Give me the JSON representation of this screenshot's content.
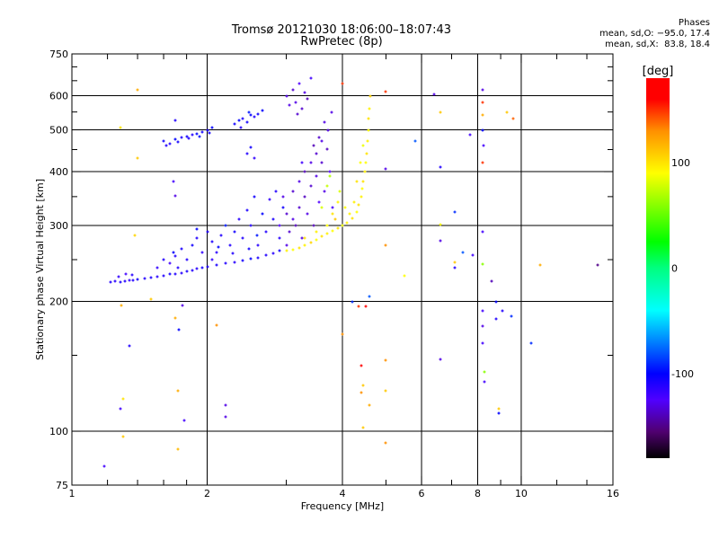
{
  "chart_data": {
    "type": "scatter",
    "title": "Tromsø 20121030 18:06:00–18:07:43",
    "subtitle": "RwPretec (8p)",
    "stats": {
      "heading": "Phases",
      "o_line": "mean, sd,O: −95.0, 17.4",
      "x_line": "mean, sd,X:  83.8, 18.4"
    },
    "xlabel": "Frequency [MHz]",
    "ylabel": "Stationary phase Virtual Height [km]",
    "xscale": "log",
    "yscale": "log",
    "xlim": [
      1,
      16
    ],
    "ylim": [
      75,
      750
    ],
    "xticks": [
      1,
      2,
      4,
      6,
      8,
      10,
      16
    ],
    "yticks": [
      75,
      100,
      200,
      300,
      400,
      500,
      600,
      750
    ],
    "xminor": [
      1.2,
      1.4,
      1.6,
      1.8,
      3,
      5,
      7,
      9,
      12,
      14
    ],
    "yminor": [
      150,
      250,
      350,
      450,
      550,
      650,
      700
    ],
    "xgrid": [
      2,
      4,
      6,
      8,
      10
    ],
    "ygrid": [
      100,
      200,
      300,
      400,
      500,
      600
    ],
    "grid": true,
    "colorbar": {
      "label": "[deg]",
      "range": [
        -180,
        180
      ],
      "ticks": [
        100,
        0,
        -100
      ],
      "stops": [
        [
          -180,
          "#000000"
        ],
        [
          -155,
          "#500070"
        ],
        [
          -125,
          "#5000ff"
        ],
        [
          -100,
          "#0000ff"
        ],
        [
          -70,
          "#0080ff"
        ],
        [
          -40,
          "#00ffff"
        ],
        [
          0,
          "#00ff80"
        ],
        [
          25,
          "#00ff00"
        ],
        [
          90,
          "#ffff00"
        ],
        [
          130,
          "#ff9000"
        ],
        [
          160,
          "#ff0000"
        ],
        [
          180,
          "#ff0000"
        ]
      ]
    },
    "point_fields": [
      "frequency_mhz",
      "height_km",
      "phase_deg"
    ],
    "points": [
      [
        1.22,
        222,
        -110
      ],
      [
        1.25,
        223,
        -112
      ],
      [
        1.28,
        222,
        -108
      ],
      [
        1.31,
        223,
        -110
      ],
      [
        1.34,
        224,
        -115
      ],
      [
        1.37,
        224,
        -110
      ],
      [
        1.4,
        225,
        -105
      ],
      [
        1.27,
        228,
        -115
      ],
      [
        1.32,
        232,
        -120
      ],
      [
        1.36,
        230,
        -112
      ],
      [
        1.45,
        226,
        -110
      ],
      [
        1.5,
        227,
        -108
      ],
      [
        1.55,
        228,
        -112
      ],
      [
        1.6,
        229,
        -110
      ],
      [
        1.65,
        231,
        -105
      ],
      [
        1.7,
        232,
        -110
      ],
      [
        1.75,
        233,
        -112
      ],
      [
        1.8,
        235,
        -108
      ],
      [
        1.85,
        236,
        -110
      ],
      [
        1.9,
        238,
        -112
      ],
      [
        1.95,
        240,
        -105
      ],
      [
        2.0,
        241,
        -110
      ],
      [
        2.1,
        243,
        -108
      ],
      [
        2.2,
        245,
        -110
      ],
      [
        2.3,
        247,
        -112
      ],
      [
        2.4,
        249,
        -105
      ],
      [
        2.5,
        251,
        -100
      ],
      [
        2.6,
        253,
        -108
      ],
      [
        2.7,
        256,
        -110
      ],
      [
        2.8,
        259,
        -112
      ],
      [
        2.9,
        262,
        -105
      ],
      [
        1.55,
        240,
        -115
      ],
      [
        1.6,
        250,
        -110
      ],
      [
        1.65,
        245,
        -120
      ],
      [
        1.7,
        255,
        -112
      ],
      [
        1.75,
        265,
        -108
      ],
      [
        1.8,
        250,
        -110
      ],
      [
        1.85,
        270,
        -105
      ],
      [
        1.9,
        280,
        -110
      ],
      [
        1.95,
        260,
        -115
      ],
      [
        2.0,
        290,
        -110
      ],
      [
        2.05,
        275,
        -108
      ],
      [
        1.9,
        295,
        -100
      ],
      [
        2.1,
        260,
        -112
      ],
      [
        2.15,
        285,
        -110
      ],
      [
        2.2,
        300,
        -95
      ],
      [
        2.25,
        270,
        -110
      ],
      [
        2.3,
        290,
        -105
      ],
      [
        2.35,
        310,
        -112
      ],
      [
        2.4,
        280,
        -110
      ],
      [
        2.45,
        325,
        -108
      ],
      [
        2.5,
        300,
        -110
      ],
      [
        2.55,
        350,
        -105
      ],
      [
        2.6,
        270,
        -112
      ],
      [
        2.65,
        320,
        -100
      ],
      [
        2.7,
        290,
        -110
      ],
      [
        2.75,
        345,
        -115
      ],
      [
        2.8,
        310,
        -108
      ],
      [
        2.85,
        360,
        -110
      ],
      [
        2.9,
        280,
        -112
      ],
      [
        2.95,
        330,
        -105
      ],
      [
        1.72,
        240,
        -110
      ],
      [
        1.68,
        260,
        -100
      ],
      [
        2.05,
        250,
        -115
      ],
      [
        2.12,
        268,
        -100
      ],
      [
        2.28,
        258,
        -110
      ],
      [
        2.48,
        265,
        -105
      ],
      [
        2.58,
        285,
        -95
      ],
      [
        3.0,
        270,
        -130
      ],
      [
        3.05,
        290,
        -135
      ],
      [
        3.1,
        310,
        -130
      ],
      [
        3.15,
        300,
        -140
      ],
      [
        3.2,
        330,
        -135
      ],
      [
        3.25,
        280,
        -130
      ],
      [
        3.3,
        350,
        -138
      ],
      [
        3.35,
        320,
        -130
      ],
      [
        3.4,
        370,
        -135
      ],
      [
        3.45,
        300,
        -140
      ],
      [
        3.5,
        390,
        -130
      ],
      [
        3.55,
        340,
        -125
      ],
      [
        3.6,
        420,
        -135
      ],
      [
        3.65,
        360,
        -130
      ],
      [
        3.7,
        450,
        -138
      ],
      [
        3.72,
        500,
        -130
      ],
      [
        3.75,
        400,
        -125
      ],
      [
        3.78,
        550,
        -130
      ],
      [
        3.8,
        330,
        -120
      ],
      [
        3.1,
        360,
        -135
      ],
      [
        3.2,
        380,
        -130
      ],
      [
        3.3,
        400,
        -140
      ],
      [
        3.4,
        420,
        -130
      ],
      [
        3.5,
        440,
        -135
      ],
      [
        3.6,
        470,
        -130
      ],
      [
        3.25,
        420,
        -120
      ],
      [
        2.9,
        300,
        -125
      ],
      [
        2.95,
        350,
        -130
      ],
      [
        3.0,
        320,
        -135
      ],
      [
        3.55,
        480,
        -135
      ],
      [
        3.65,
        520,
        -130
      ],
      [
        3.45,
        460,
        -140
      ],
      [
        1.6,
        470,
        -105
      ],
      [
        1.65,
        465,
        -110
      ],
      [
        1.7,
        475,
        -100
      ],
      [
        1.75,
        480,
        -108
      ],
      [
        1.8,
        483,
        -105
      ],
      [
        1.85,
        486,
        -110
      ],
      [
        1.9,
        490,
        -100
      ],
      [
        1.95,
        495,
        -105
      ],
      [
        2.0,
        500,
        -108
      ],
      [
        2.05,
        505,
        -100
      ],
      [
        1.62,
        460,
        -110
      ],
      [
        1.72,
        468,
        -105
      ],
      [
        1.82,
        478,
        -110
      ],
      [
        1.92,
        482,
        -98
      ],
      [
        2.02,
        492,
        -105
      ],
      [
        2.3,
        515,
        -105
      ],
      [
        2.35,
        525,
        -100
      ],
      [
        2.4,
        530,
        -108
      ],
      [
        2.45,
        520,
        -105
      ],
      [
        2.5,
        540,
        -100
      ],
      [
        2.55,
        535,
        -110
      ],
      [
        2.6,
        545,
        -105
      ],
      [
        2.65,
        555,
        -100
      ],
      [
        2.38,
        505,
        -110
      ],
      [
        2.48,
        550,
        -95
      ],
      [
        2.45,
        440,
        -110
      ],
      [
        2.5,
        455,
        -105
      ],
      [
        2.55,
        430,
        -115
      ],
      [
        3.0,
        600,
        -130
      ],
      [
        3.1,
        620,
        -135
      ],
      [
        3.15,
        580,
        -130
      ],
      [
        3.2,
        640,
        -125
      ],
      [
        3.25,
        560,
        -135
      ],
      [
        3.3,
        610,
        -130
      ],
      [
        3.35,
        590,
        -140
      ],
      [
        3.05,
        570,
        -130
      ],
      [
        3.4,
        660,
        -120
      ],
      [
        3.18,
        545,
        -135
      ],
      [
        3.0,
        262,
        95
      ],
      [
        3.1,
        264,
        90
      ],
      [
        3.2,
        266,
        100
      ],
      [
        3.3,
        270,
        95
      ],
      [
        3.4,
        274,
        105
      ],
      [
        3.5,
        278,
        90
      ],
      [
        3.6,
        283,
        100
      ],
      [
        3.7,
        288,
        95
      ],
      [
        3.8,
        292,
        90
      ],
      [
        3.9,
        296,
        100
      ],
      [
        4.0,
        300,
        85
      ],
      [
        4.1,
        305,
        95
      ],
      [
        4.2,
        312,
        100
      ],
      [
        4.3,
        322,
        90
      ],
      [
        4.35,
        335,
        100
      ],
      [
        4.4,
        350,
        95
      ],
      [
        4.42,
        365,
        90
      ],
      [
        4.45,
        380,
        100
      ],
      [
        4.48,
        400,
        95
      ],
      [
        4.5,
        420,
        90
      ],
      [
        4.52,
        440,
        100
      ],
      [
        4.55,
        470,
        95
      ],
      [
        4.57,
        500,
        90
      ],
      [
        4.58,
        530,
        100
      ],
      [
        4.6,
        560,
        95
      ],
      [
        4.62,
        600,
        105
      ],
      [
        3.3,
        280,
        100
      ],
      [
        3.5,
        290,
        95
      ],
      [
        3.7,
        300,
        90
      ],
      [
        3.8,
        320,
        100
      ],
      [
        3.9,
        340,
        95
      ],
      [
        3.95,
        360,
        80
      ],
      [
        4.05,
        330,
        90
      ],
      [
        4.25,
        340,
        95
      ],
      [
        4.3,
        380,
        100
      ],
      [
        4.38,
        420,
        90
      ],
      [
        4.45,
        460,
        85
      ],
      [
        3.85,
        310,
        110
      ],
      [
        4.15,
        320,
        95
      ],
      [
        3.6,
        330,
        80
      ],
      [
        3.7,
        370,
        75
      ],
      [
        3.75,
        390,
        70
      ],
      [
        1.3,
        97,
        110
      ],
      [
        1.3,
        119,
        100
      ],
      [
        1.28,
        113,
        -120
      ],
      [
        1.34,
        158,
        -110
      ],
      [
        1.29,
        196,
        120
      ],
      [
        1.28,
        505,
        100
      ],
      [
        1.4,
        620,
        120
      ],
      [
        1.4,
        430,
        110
      ],
      [
        1.38,
        285,
        105
      ],
      [
        1.5,
        202,
        110
      ],
      [
        1.18,
        83,
        -120
      ],
      [
        1.7,
        527,
        -110
      ],
      [
        1.68,
        380,
        -120
      ],
      [
        1.7,
        352,
        -130
      ],
      [
        1.7,
        183,
        120
      ],
      [
        1.73,
        172,
        -100
      ],
      [
        1.72,
        124,
        120
      ],
      [
        1.72,
        91,
        115
      ],
      [
        1.76,
        196,
        -130
      ],
      [
        1.78,
        106,
        -120
      ],
      [
        2.2,
        115,
        -130
      ],
      [
        2.2,
        108,
        -130
      ],
      [
        2.1,
        176,
        130
      ],
      [
        4.0,
        640,
        150
      ],
      [
        4.0,
        168,
        130
      ],
      [
        4.2,
        200,
        -90
      ],
      [
        4.35,
        195,
        150
      ],
      [
        4.4,
        142,
        160
      ],
      [
        4.4,
        123,
        130
      ],
      [
        4.45,
        128,
        110
      ],
      [
        4.5,
        195,
        160
      ],
      [
        4.6,
        115,
        120
      ],
      [
        4.45,
        102,
        110
      ],
      [
        5.0,
        612,
        150
      ],
      [
        5.0,
        406,
        -130
      ],
      [
        5.0,
        124,
        110
      ],
      [
        5.0,
        94,
        130
      ],
      [
        5.0,
        146,
        130
      ],
      [
        5.0,
        270,
        130
      ],
      [
        4.6,
        205,
        -80
      ],
      [
        5.5,
        229,
        90
      ],
      [
        5.8,
        470,
        -80
      ],
      [
        6.4,
        605,
        -130
      ],
      [
        6.6,
        550,
        110
      ],
      [
        6.6,
        410,
        -110
      ],
      [
        6.6,
        302,
        90
      ],
      [
        6.6,
        276,
        -130
      ],
      [
        6.6,
        147,
        -130
      ],
      [
        7.1,
        322,
        -90
      ],
      [
        7.1,
        247,
        110
      ],
      [
        7.1,
        240,
        -110
      ],
      [
        7.4,
        260,
        -80
      ],
      [
        7.7,
        487,
        -120
      ],
      [
        7.8,
        256,
        -120
      ],
      [
        8.2,
        620,
        -130
      ],
      [
        8.2,
        580,
        150
      ],
      [
        8.2,
        540,
        120
      ],
      [
        8.2,
        500,
        -100
      ],
      [
        8.25,
        460,
        -120
      ],
      [
        8.2,
        420,
        150
      ],
      [
        8.2,
        290,
        -120
      ],
      [
        8.2,
        244,
        60
      ],
      [
        8.2,
        190,
        -120
      ],
      [
        8.2,
        175,
        -130
      ],
      [
        8.2,
        160,
        -120
      ],
      [
        8.3,
        137,
        60
      ],
      [
        8.3,
        130,
        -120
      ],
      [
        8.6,
        223,
        -140
      ],
      [
        8.8,
        200,
        -100
      ],
      [
        8.8,
        182,
        -110
      ],
      [
        8.9,
        113,
        110
      ],
      [
        8.9,
        110,
        -100
      ],
      [
        9.1,
        190,
        -110
      ],
      [
        9.3,
        550,
        110
      ],
      [
        9.5,
        185,
        -90
      ],
      [
        9.6,
        530,
        140
      ],
      [
        10.5,
        160,
        -90
      ],
      [
        11,
        243,
        120
      ],
      [
        14.8,
        243,
        -150
      ]
    ]
  }
}
